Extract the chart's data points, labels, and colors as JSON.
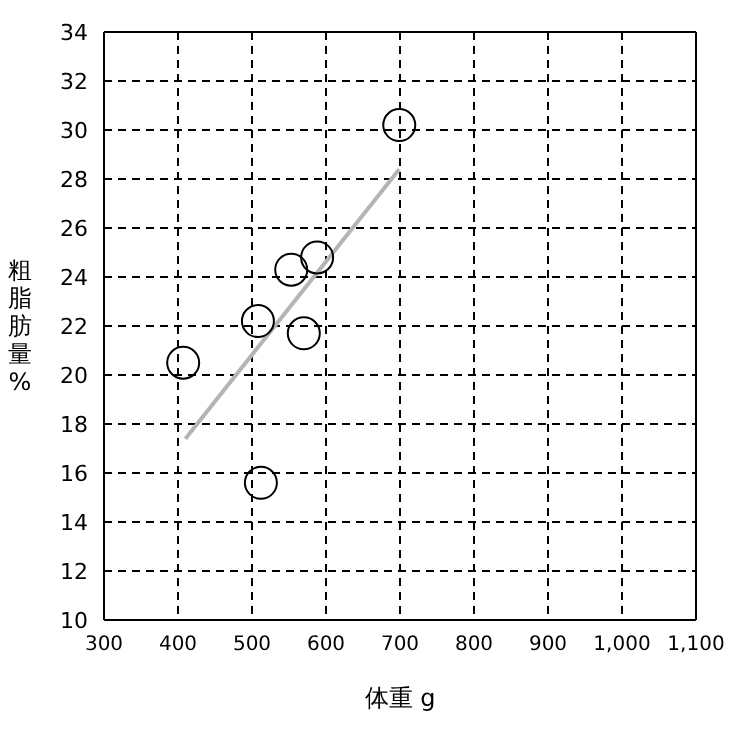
{
  "chart_data": {
    "type": "scatter",
    "xlabel": "体重 g",
    "ylabel": "粗脂肪量%",
    "x": [
      407,
      508,
      570,
      512,
      699,
      588,
      553
    ],
    "series": [
      {
        "color": "#000000",
        "values": [
          20.5,
          22.2,
          21.7,
          15.6,
          30.2,
          24.8,
          24.3
        ],
        "marker": "circle"
      },
      {
        "type": "line",
        "color": "#b4b4b4",
        "x": [
          410,
          699
        ],
        "values": [
          17.4,
          28.4
        ],
        "marker": "none"
      }
    ],
    "xlim": [
      300,
      1100
    ],
    "xticks": [
      300,
      400,
      500,
      600,
      700,
      800,
      900,
      {
        "value": 1000,
        "label": "1,000"
      },
      {
        "value": 1100,
        "label": "1,100"
      }
    ],
    "ylim": [
      10,
      34
    ],
    "yticks": [
      10,
      12,
      14,
      16,
      18,
      20,
      22,
      24,
      26,
      28,
      30,
      32,
      34
    ],
    "grid": true
  }
}
